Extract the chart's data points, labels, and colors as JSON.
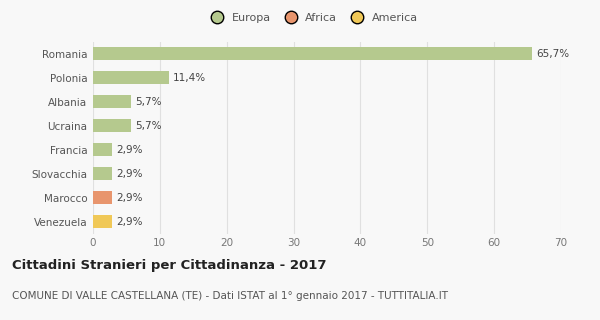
{
  "categories": [
    "Romania",
    "Polonia",
    "Albania",
    "Ucraina",
    "Francia",
    "Slovacchia",
    "Marocco",
    "Venezuela"
  ],
  "values": [
    65.7,
    11.4,
    5.7,
    5.7,
    2.9,
    2.9,
    2.9,
    2.9
  ],
  "labels": [
    "65,7%",
    "11,4%",
    "5,7%",
    "5,7%",
    "2,9%",
    "2,9%",
    "2,9%",
    "2,9%"
  ],
  "colors": [
    "#b5c98e",
    "#b5c98e",
    "#b5c98e",
    "#b5c98e",
    "#b5c98e",
    "#b5c98e",
    "#e8956d",
    "#f0c857"
  ],
  "legend_labels": [
    "Europa",
    "Africa",
    "America"
  ],
  "legend_colors": [
    "#b5c98e",
    "#e8956d",
    "#f0c857"
  ],
  "title": "Cittadini Stranieri per Cittadinanza - 2017",
  "subtitle": "COMUNE DI VALLE CASTELLANA (TE) - Dati ISTAT al 1° gennaio 2017 - TUTTITALIA.IT",
  "xlim": [
    0,
    70
  ],
  "xticks": [
    0,
    10,
    20,
    30,
    40,
    50,
    60,
    70
  ],
  "background_color": "#f8f8f8",
  "grid_color": "#e0e0e0",
  "title_fontsize": 9.5,
  "subtitle_fontsize": 7.5,
  "label_fontsize": 7.5,
  "tick_fontsize": 7.5,
  "legend_fontsize": 8.0
}
